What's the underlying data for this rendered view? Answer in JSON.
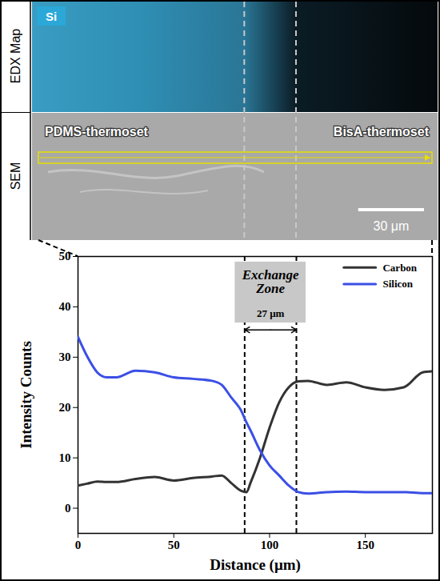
{
  "figure": {
    "edx_label": "EDX Map",
    "sem_label": "SEM",
    "element": "Si",
    "left_material": "PDMS-thermoset",
    "right_material": "BisA-thermoset",
    "scale_bar": {
      "value": 30,
      "label": "30 μm"
    }
  },
  "chart_data": {
    "type": "line",
    "x_label": "Distance (μm)",
    "y_label": "Intensity Counts",
    "x": [
      0,
      5,
      10,
      15,
      20,
      30,
      40,
      50,
      60,
      70,
      75,
      80,
      85,
      88,
      90,
      95,
      100,
      105,
      110,
      115,
      120,
      130,
      140,
      150,
      160,
      170,
      180,
      185
    ],
    "series": [
      {
        "name": "Carbon",
        "color": "#333333",
        "values": [
          4.5,
          4.9,
          5.3,
          5.2,
          5.2,
          5.8,
          6.2,
          5.5,
          6.0,
          6.3,
          6.5,
          5.0,
          3.5,
          3.2,
          5.0,
          10.0,
          16.0,
          21.0,
          24.0,
          25.2,
          25.3,
          24.5,
          25.0,
          24.0,
          23.5,
          24.0,
          27.0,
          27.2
        ]
      },
      {
        "name": "Silicon",
        "color": "#3b4fe6",
        "values": [
          34.0,
          30.0,
          27.0,
          26.0,
          26.0,
          27.3,
          27.0,
          26.0,
          25.7,
          25.3,
          24.5,
          22.0,
          19.5,
          17.0,
          15.5,
          11.5,
          8.5,
          6.5,
          4.5,
          3.2,
          2.9,
          3.2,
          3.3,
          3.2,
          3.2,
          3.2,
          3.0,
          3.0
        ]
      }
    ],
    "exchange_zone": {
      "label": "Exchange Zone",
      "width_label": "27 μm",
      "x": [
        87,
        114
      ]
    },
    "xlim": [
      0,
      185
    ],
    "xticks": [
      0,
      50,
      100,
      150
    ],
    "ylim": [
      -5,
      50
    ],
    "yticks": [
      0,
      10,
      20,
      30,
      40,
      50
    ],
    "grid": false,
    "legend": "top-right"
  }
}
